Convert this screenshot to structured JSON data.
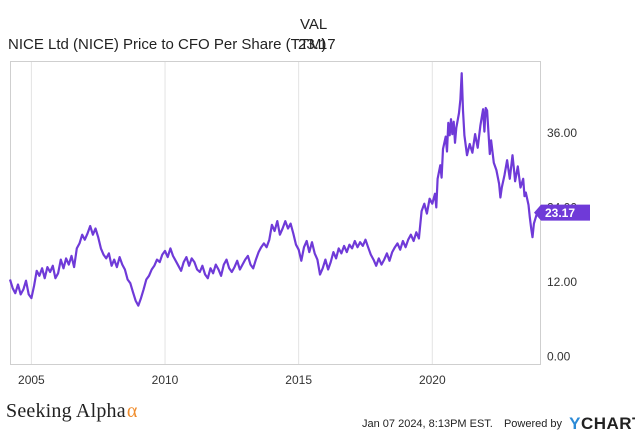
{
  "legend": {
    "header": "VAL",
    "series_name": "NICE Ltd (NICE) Price to CFO Per Share (TTM)",
    "series_value": "23.17"
  },
  "footer": {
    "brand": "Seeking Alpha",
    "brand_symbol": "α",
    "timestamp": "Jan 07 2024, 8:13PM EST.",
    "powered_by": "Powered by",
    "provider_y": "Y",
    "provider_rest": "CHARTS"
  },
  "colors": {
    "series": "#6f3ad8",
    "grid": "#e3e3e3",
    "axis_text": "#333333",
    "brand_alpha": "#f08c2b",
    "ycharts_y": "#2b8ad6"
  },
  "chart_data": {
    "type": "line",
    "series": [
      {
        "name": "NICE Ltd (NICE) Price to CFO Per Share (TTM)",
        "last_value": 23.17
      }
    ],
    "x_ticks": [
      "2005",
      "2010",
      "2015",
      "2020"
    ],
    "y_ticks": [
      "0.00",
      "12.00",
      "24.00",
      "36.00"
    ],
    "xlim": [
      2004.2,
      2024.03
    ],
    "ylim": [
      -1.2,
      47.4
    ],
    "grid": "vertical",
    "data": [
      [
        2004.2,
        12.4
      ],
      [
        2004.3,
        11.0
      ],
      [
        2004.4,
        10.2
      ],
      [
        2004.5,
        11.6
      ],
      [
        2004.6,
        10.0
      ],
      [
        2004.7,
        10.8
      ],
      [
        2004.8,
        12.2
      ],
      [
        2004.9,
        10.0
      ],
      [
        2005.0,
        9.4
      ],
      [
        2005.1,
        11.4
      ],
      [
        2005.2,
        13.8
      ],
      [
        2005.3,
        13.0
      ],
      [
        2005.4,
        14.2
      ],
      [
        2005.5,
        12.6
      ],
      [
        2005.6,
        14.4
      ],
      [
        2005.7,
        13.6
      ],
      [
        2005.8,
        14.6
      ],
      [
        2005.9,
        12.6
      ],
      [
        2006.0,
        13.4
      ],
      [
        2006.1,
        15.6
      ],
      [
        2006.2,
        14.2
      ],
      [
        2006.3,
        15.8
      ],
      [
        2006.4,
        14.8
      ],
      [
        2006.5,
        16.2
      ],
      [
        2006.6,
        14.4
      ],
      [
        2006.7,
        17.4
      ],
      [
        2006.8,
        18.2
      ],
      [
        2006.9,
        19.6
      ],
      [
        2007.0,
        18.8
      ],
      [
        2007.1,
        19.8
      ],
      [
        2007.2,
        21.0
      ],
      [
        2007.3,
        19.6
      ],
      [
        2007.4,
        20.6
      ],
      [
        2007.5,
        19.2
      ],
      [
        2007.6,
        17.4
      ],
      [
        2007.7,
        16.4
      ],
      [
        2007.8,
        15.8
      ],
      [
        2007.9,
        16.6
      ],
      [
        2008.0,
        14.6
      ],
      [
        2008.1,
        15.6
      ],
      [
        2008.2,
        14.4
      ],
      [
        2008.3,
        16.0
      ],
      [
        2008.4,
        14.8
      ],
      [
        2008.5,
        14.0
      ],
      [
        2008.6,
        12.4
      ],
      [
        2008.7,
        11.8
      ],
      [
        2008.8,
        10.4
      ],
      [
        2008.9,
        9.0
      ],
      [
        2009.0,
        8.2
      ],
      [
        2009.1,
        9.4
      ],
      [
        2009.2,
        10.8
      ],
      [
        2009.3,
        12.4
      ],
      [
        2009.4,
        13.0
      ],
      [
        2009.5,
        14.0
      ],
      [
        2009.6,
        14.6
      ],
      [
        2009.7,
        15.6
      ],
      [
        2009.8,
        15.2
      ],
      [
        2009.9,
        16.4
      ],
      [
        2010.0,
        17.0
      ],
      [
        2010.1,
        16.0
      ],
      [
        2010.2,
        17.4
      ],
      [
        2010.3,
        16.2
      ],
      [
        2010.4,
        15.4
      ],
      [
        2010.5,
        14.6
      ],
      [
        2010.6,
        13.8
      ],
      [
        2010.7,
        15.2
      ],
      [
        2010.8,
        16.0
      ],
      [
        2010.9,
        14.6
      ],
      [
        2011.0,
        15.8
      ],
      [
        2011.1,
        15.2
      ],
      [
        2011.2,
        14.0
      ],
      [
        2011.3,
        13.6
      ],
      [
        2011.4,
        14.6
      ],
      [
        2011.5,
        13.2
      ],
      [
        2011.6,
        12.6
      ],
      [
        2011.7,
        14.2
      ],
      [
        2011.8,
        13.4
      ],
      [
        2011.9,
        14.8
      ],
      [
        2012.0,
        14.0
      ],
      [
        2012.1,
        13.0
      ],
      [
        2012.2,
        14.8
      ],
      [
        2012.3,
        15.6
      ],
      [
        2012.4,
        14.2
      ],
      [
        2012.5,
        13.6
      ],
      [
        2012.6,
        14.4
      ],
      [
        2012.7,
        15.4
      ],
      [
        2012.8,
        14.0
      ],
      [
        2012.9,
        14.8
      ],
      [
        2013.0,
        15.6
      ],
      [
        2013.1,
        16.2
      ],
      [
        2013.2,
        14.8
      ],
      [
        2013.3,
        14.2
      ],
      [
        2013.4,
        15.6
      ],
      [
        2013.5,
        16.8
      ],
      [
        2013.6,
        17.6
      ],
      [
        2013.7,
        18.2
      ],
      [
        2013.8,
        17.6
      ],
      [
        2013.9,
        18.8
      ],
      [
        2014.0,
        21.2
      ],
      [
        2014.1,
        20.2
      ],
      [
        2014.2,
        21.8
      ],
      [
        2014.3,
        19.6
      ],
      [
        2014.4,
        20.6
      ],
      [
        2014.5,
        21.8
      ],
      [
        2014.6,
        20.6
      ],
      [
        2014.7,
        21.4
      ],
      [
        2014.8,
        19.8
      ],
      [
        2014.9,
        18.0
      ],
      [
        2015.0,
        17.2
      ],
      [
        2015.1,
        15.4
      ],
      [
        2015.2,
        17.6
      ],
      [
        2015.3,
        18.6
      ],
      [
        2015.4,
        16.8
      ],
      [
        2015.5,
        18.4
      ],
      [
        2015.6,
        16.6
      ],
      [
        2015.7,
        15.6
      ],
      [
        2015.8,
        13.2
      ],
      [
        2015.9,
        14.2
      ],
      [
        2016.0,
        15.6
      ],
      [
        2016.1,
        14.0
      ],
      [
        2016.2,
        15.2
      ],
      [
        2016.3,
        16.8
      ],
      [
        2016.4,
        15.8
      ],
      [
        2016.5,
        17.4
      ],
      [
        2016.6,
        16.6
      ],
      [
        2016.7,
        17.8
      ],
      [
        2016.8,
        16.8
      ],
      [
        2016.9,
        18.0
      ],
      [
        2017.0,
        17.4
      ],
      [
        2017.1,
        18.6
      ],
      [
        2017.2,
        17.6
      ],
      [
        2017.3,
        18.4
      ],
      [
        2017.4,
        17.8
      ],
      [
        2017.5,
        18.8
      ],
      [
        2017.6,
        17.6
      ],
      [
        2017.7,
        16.4
      ],
      [
        2017.8,
        15.6
      ],
      [
        2017.9,
        14.6
      ],
      [
        2018.0,
        15.8
      ],
      [
        2018.1,
        14.8
      ],
      [
        2018.2,
        15.6
      ],
      [
        2018.3,
        16.6
      ],
      [
        2018.4,
        15.4
      ],
      [
        2018.5,
        16.8
      ],
      [
        2018.6,
        17.6
      ],
      [
        2018.7,
        18.2
      ],
      [
        2018.8,
        17.2
      ],
      [
        2018.9,
        18.6
      ],
      [
        2019.0,
        17.6
      ],
      [
        2019.1,
        18.8
      ],
      [
        2019.2,
        19.6
      ],
      [
        2019.3,
        18.6
      ],
      [
        2019.4,
        20.0
      ],
      [
        2019.5,
        19.0
      ],
      [
        2019.6,
        23.4
      ],
      [
        2019.7,
        24.6
      ],
      [
        2019.8,
        23.0
      ],
      [
        2019.9,
        25.4
      ],
      [
        2020.0,
        24.6
      ],
      [
        2020.1,
        26.2
      ],
      [
        2020.15,
        24.0
      ],
      [
        2020.2,
        28.6
      ],
      [
        2020.3,
        30.8
      ],
      [
        2020.35,
        28.8
      ],
      [
        2020.4,
        33.4
      ],
      [
        2020.5,
        35.4
      ],
      [
        2020.55,
        33.0
      ],
      [
        2020.6,
        37.6
      ],
      [
        2020.65,
        35.6
      ],
      [
        2020.7,
        38.2
      ],
      [
        2020.75,
        35.8
      ],
      [
        2020.8,
        37.8
      ],
      [
        2020.85,
        34.4
      ],
      [
        2020.9,
        36.8
      ],
      [
        2021.0,
        39.2
      ],
      [
        2021.05,
        41.4
      ],
      [
        2021.1,
        45.6
      ],
      [
        2021.15,
        39.6
      ],
      [
        2021.2,
        35.6
      ],
      [
        2021.3,
        32.4
      ],
      [
        2021.4,
        34.2
      ],
      [
        2021.5,
        32.8
      ],
      [
        2021.6,
        35.8
      ],
      [
        2021.7,
        33.6
      ],
      [
        2021.8,
        37.2
      ],
      [
        2021.9,
        39.8
      ],
      [
        2021.95,
        36.2
      ],
      [
        2022.0,
        40.0
      ],
      [
        2022.05,
        39.6
      ],
      [
        2022.1,
        36.2
      ],
      [
        2022.15,
        32.6
      ],
      [
        2022.2,
        34.8
      ],
      [
        2022.3,
        31.2
      ],
      [
        2022.4,
        30.0
      ],
      [
        2022.5,
        27.8
      ],
      [
        2022.55,
        25.6
      ],
      [
        2022.6,
        27.2
      ],
      [
        2022.7,
        29.2
      ],
      [
        2022.8,
        31.6
      ],
      [
        2022.9,
        28.6
      ],
      [
        2023.0,
        32.4
      ],
      [
        2023.05,
        30.4
      ],
      [
        2023.1,
        28.2
      ],
      [
        2023.2,
        30.6
      ],
      [
        2023.3,
        27.2
      ],
      [
        2023.4,
        28.6
      ],
      [
        2023.45,
        25.8
      ],
      [
        2023.5,
        26.4
      ],
      [
        2023.6,
        24.4
      ],
      [
        2023.65,
        22.4
      ],
      [
        2023.7,
        20.6
      ],
      [
        2023.75,
        19.2
      ],
      [
        2023.8,
        21.4
      ],
      [
        2023.9,
        22.8
      ],
      [
        2024.0,
        23.17
      ]
    ]
  }
}
